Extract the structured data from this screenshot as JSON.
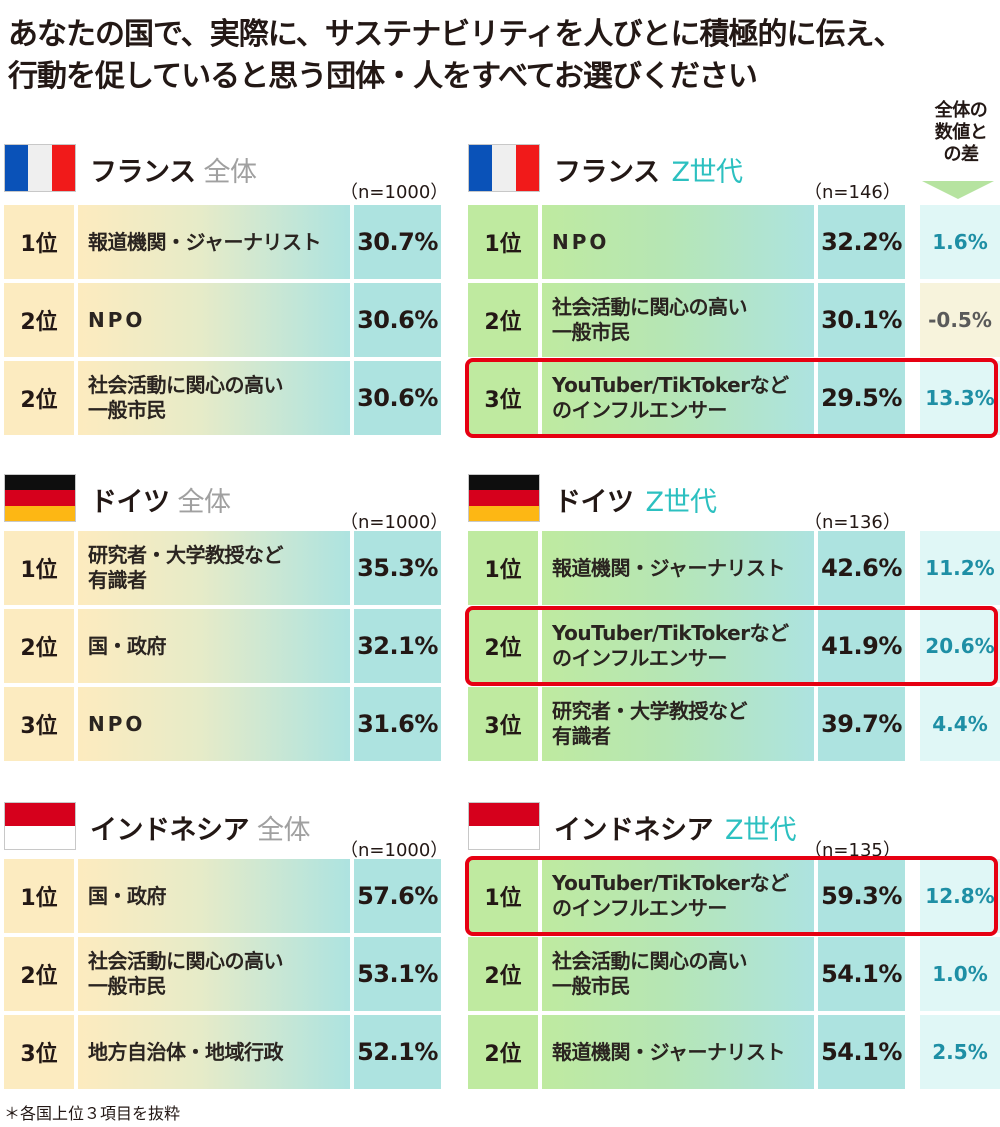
{
  "title": {
    "line1": "あなたの国で、実際に、サステナビリティを人びとに積極的に伝え、",
    "line2": "行動を促していると思う団体・人をすべてお選びください"
  },
  "diff_header": {
    "line1": "全体の",
    "line2": "数値と",
    "line3": "の差"
  },
  "footnote": "＊各国上位３項目を抜粋",
  "colors": {
    "all_rank_bg": "#fcebc0",
    "z_rank_bg": "#bfeaa0",
    "value_bg": "#ade3e0",
    "diff_bg": "#e0f7f6",
    "diff_neg_bg": "#f7f3dc",
    "diff_text": "#1e8fa5",
    "highlight": "#e60012",
    "z_accent": "#2cc0c0",
    "all_accent": "#a0a0a0"
  },
  "panels": {
    "fr_all": {
      "country": "フランス",
      "segment": "全体",
      "n": "（n=1000）",
      "rows": [
        {
          "rank": "1位",
          "label1": "報道機関・ジャーナリスト",
          "label2": "",
          "value": "30.7%"
        },
        {
          "rank": "2位",
          "label1": "NPO",
          "label2": "",
          "value": "30.6%"
        },
        {
          "rank": "2位",
          "label1": "社会活動に関心の高い",
          "label2": "一般市民",
          "value": "30.6%"
        }
      ]
    },
    "fr_z": {
      "country": "フランス",
      "segment": "Z世代",
      "n": "（n=146）",
      "rows": [
        {
          "rank": "1位",
          "label1": "NPO",
          "label2": "",
          "value": "32.2%",
          "diff": "1.6%"
        },
        {
          "rank": "2位",
          "label1": "社会活動に関心の高い",
          "label2": "一般市民",
          "value": "30.1%",
          "diff": "-0.5%"
        },
        {
          "rank": "3位",
          "label1": "YouTuber/TikTokerなど",
          "label2": "のインフルエンサー",
          "value": "29.5%",
          "diff": "13.3%"
        }
      ]
    },
    "de_all": {
      "country": "ドイツ",
      "segment": "全体",
      "n": "（n=1000）",
      "rows": [
        {
          "rank": "1位",
          "label1": "研究者・大学教授など",
          "label2": "有識者",
          "value": "35.3%"
        },
        {
          "rank": "2位",
          "label1": "国・政府",
          "label2": "",
          "value": "32.1%"
        },
        {
          "rank": "3位",
          "label1": "NPO",
          "label2": "",
          "value": "31.6%"
        }
      ]
    },
    "de_z": {
      "country": "ドイツ",
      "segment": "Z世代",
      "n": "（n=136）",
      "rows": [
        {
          "rank": "1位",
          "label1": "報道機関・ジャーナリスト",
          "label2": "",
          "value": "42.6%",
          "diff": "11.2%"
        },
        {
          "rank": "2位",
          "label1": "YouTuber/TikTokerなど",
          "label2": "のインフルエンサー",
          "value": "41.9%",
          "diff": "20.6%"
        },
        {
          "rank": "3位",
          "label1": "研究者・大学教授など",
          "label2": "有識者",
          "value": "39.7%",
          "diff": "4.4%"
        }
      ]
    },
    "id_all": {
      "country": "インドネシア",
      "segment": "全体",
      "n": "（n=1000）",
      "rows": [
        {
          "rank": "1位",
          "label1": "国・政府",
          "label2": "",
          "value": "57.6%"
        },
        {
          "rank": "2位",
          "label1": "社会活動に関心の高い",
          "label2": "一般市民",
          "value": "53.1%"
        },
        {
          "rank": "3位",
          "label1": "地方自治体・地域行政",
          "label2": "",
          "value": "52.1%"
        }
      ]
    },
    "id_z": {
      "country": "インドネシア",
      "segment": "Z世代",
      "n": "（n=135）",
      "rows": [
        {
          "rank": "1位",
          "label1": "YouTuber/TikTokerなど",
          "label2": "のインフルエンサー",
          "value": "59.3%",
          "diff": "12.8%"
        },
        {
          "rank": "2位",
          "label1": "社会活動に関心の高い",
          "label2": "一般市民",
          "value": "54.1%",
          "diff": "1.0%"
        },
        {
          "rank": "2位",
          "label1": "報道機関・ジャーナリスト",
          "label2": "",
          "value": "54.1%",
          "diff": "2.5%"
        }
      ]
    }
  },
  "chart_data": {
    "type": "table",
    "title": "あなたの国で、実際に、サステナビリティを人びとに積極的に伝え、行動を促していると思う団体・人をすべてお選びください",
    "note": "＊各国上位３項目を抜粋",
    "diff_column": "全体の数値との差",
    "tables": [
      {
        "country": "フランス",
        "segment": "全体",
        "n": 1000,
        "rows": [
          [
            "1位",
            "報道機関・ジャーナリスト",
            30.7
          ],
          [
            "2位",
            "NPO",
            30.6
          ],
          [
            "2位",
            "社会活動に関心の高い一般市民",
            30.6
          ]
        ]
      },
      {
        "country": "フランス",
        "segment": "Z世代",
        "n": 146,
        "rows": [
          [
            "1位",
            "NPO",
            32.2,
            1.6
          ],
          [
            "2位",
            "社会活動に関心の高い一般市民",
            30.1,
            -0.5
          ],
          [
            "3位",
            "YouTuber/TikTokerなどのインフルエンサー",
            29.5,
            13.3
          ]
        ]
      },
      {
        "country": "ドイツ",
        "segment": "全体",
        "n": 1000,
        "rows": [
          [
            "1位",
            "研究者・大学教授など有識者",
            35.3
          ],
          [
            "2位",
            "国・政府",
            32.1
          ],
          [
            "3位",
            "NPO",
            31.6
          ]
        ]
      },
      {
        "country": "ドイツ",
        "segment": "Z世代",
        "n": 136,
        "rows": [
          [
            "1位",
            "報道機関・ジャーナリスト",
            42.6,
            11.2
          ],
          [
            "2位",
            "YouTuber/TikTokerなどのインフルエンサー",
            41.9,
            20.6
          ],
          [
            "3位",
            "研究者・大学教授など有識者",
            39.7,
            4.4
          ]
        ]
      },
      {
        "country": "インドネシア",
        "segment": "全体",
        "n": 1000,
        "rows": [
          [
            "1位",
            "国・政府",
            57.6
          ],
          [
            "2位",
            "社会活動に関心の高い一般市民",
            53.1
          ],
          [
            "3位",
            "地方自治体・地域行政",
            52.1
          ]
        ]
      },
      {
        "country": "インドネシア",
        "segment": "Z世代",
        "n": 135,
        "rows": [
          [
            "1位",
            "YouTuber/TikTokerなどのインフルエンサー",
            59.3,
            12.8
          ],
          [
            "2位",
            "社会活動に関心の高い一般市民",
            54.1,
            1.0
          ],
          [
            "2位",
            "報道機関・ジャーナリスト",
            54.1,
            2.5
          ]
        ]
      }
    ],
    "highlighted": [
      "フランス Z世代 3位",
      "ドイツ Z世代 2位",
      "インドネシア Z世代 1位"
    ]
  }
}
